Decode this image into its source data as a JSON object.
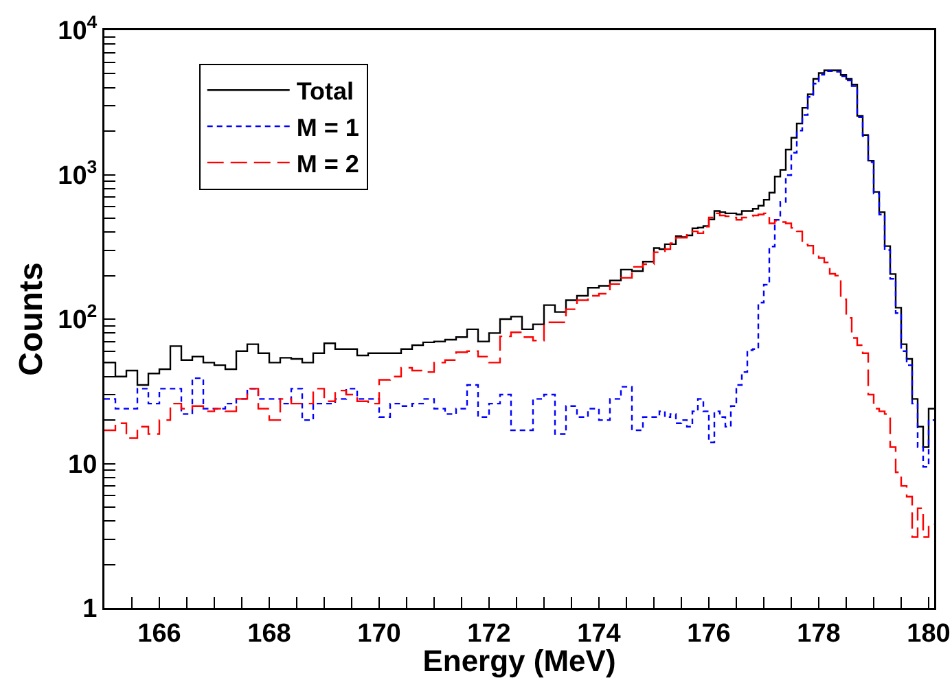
{
  "chart_data": {
    "type": "histogram",
    "xlabel": "Energy (MeV)",
    "ylabel": "Counts",
    "log": "y",
    "grid": false,
    "legend": "top left",
    "xlim": [
      165,
      180.1
    ],
    "xticks": [
      {
        "value": 165.5,
        "label": null
      },
      166,
      {
        "value": 166.5,
        "label": null
      },
      {
        "value": 167,
        "label": null
      },
      {
        "value": 167.5,
        "label": null
      },
      168,
      {
        "value": 168.5,
        "label": null
      },
      {
        "value": 169,
        "label": null
      },
      {
        "value": 169.5,
        "label": null
      },
      170,
      {
        "value": 170.5,
        "label": null
      },
      {
        "value": 171,
        "label": null
      },
      {
        "value": 171.5,
        "label": null
      },
      172,
      {
        "value": 172.5,
        "label": null
      },
      {
        "value": 173,
        "label": null
      },
      {
        "value": 173.5,
        "label": null
      },
      174,
      {
        "value": 174.5,
        "label": null
      },
      {
        "value": 175,
        "label": null
      },
      {
        "value": 175.5,
        "label": null
      },
      176,
      {
        "value": 176.5,
        "label": null
      },
      {
        "value": 177,
        "label": null
      },
      {
        "value": 177.5,
        "label": null
      },
      178,
      {
        "value": 178.5,
        "label": null
      },
      {
        "value": 179,
        "label": null
      },
      {
        "value": 179.5,
        "label": null
      },
      180
    ],
    "ylim": [
      1,
      10000
    ],
    "yticks": [
      1,
      {
        "value": 2,
        "label": null
      },
      {
        "value": 3,
        "label": null
      },
      {
        "value": 4,
        "label": null
      },
      {
        "value": 5,
        "label": null
      },
      {
        "value": 6,
        "label": null
      },
      {
        "value": 7,
        "label": null
      },
      {
        "value": 8,
        "label": null
      },
      {
        "value": 9,
        "label": null
      },
      10,
      {
        "value": 20,
        "label": null
      },
      {
        "value": 30,
        "label": null
      },
      {
        "value": 40,
        "label": null
      },
      {
        "value": 50,
        "label": null
      },
      {
        "value": 60,
        "label": null
      },
      {
        "value": 70,
        "label": null
      },
      {
        "value": 80,
        "label": null
      },
      {
        "value": 90,
        "label": null
      },
      {
        "value": 100,
        "label": "10$^{2}$"
      },
      {
        "value": 200,
        "label": null
      },
      {
        "value": 300,
        "label": null
      },
      {
        "value": 400,
        "label": null
      },
      {
        "value": 500,
        "label": null
      },
      {
        "value": 600,
        "label": null
      },
      {
        "value": 700,
        "label": null
      },
      {
        "value": 800,
        "label": null
      },
      {
        "value": 900,
        "label": null
      },
      {
        "value": 1000,
        "label": "10$^{3}$"
      },
      {
        "value": 2000,
        "label": null
      },
      {
        "value": 3000,
        "label": null
      },
      {
        "value": 4000,
        "label": null
      },
      {
        "value": 5000,
        "label": null
      },
      {
        "value": 6000,
        "label": null
      },
      {
        "value": 7000,
        "label": null
      },
      {
        "value": 8000,
        "label": null
      },
      {
        "value": 9000,
        "label": null
      },
      {
        "value": 10000,
        "label": "10$^{4}$"
      }
    ],
    "bins": [
      165,
      165.2,
      165.4,
      165.6,
      165.8,
      166,
      166.2,
      166.4,
      166.6,
      166.8,
      167,
      167.2,
      167.4,
      167.6,
      167.8,
      168,
      168.2,
      168.4,
      168.6,
      168.8,
      169,
      169.2,
      169.4,
      169.6,
      169.8,
      170,
      170.2,
      170.4,
      170.6,
      170.8,
      171,
      171.2,
      171.4,
      171.6,
      171.8,
      172,
      172.2,
      172.4,
      172.6,
      172.8,
      173,
      173.2,
      173.4,
      173.6,
      173.8,
      174,
      174.2,
      174.4,
      174.6,
      174.8,
      175,
      175.1,
      175.2,
      175.3,
      175.4,
      175.5,
      175.6,
      175.7,
      175.8,
      175.9,
      176,
      176.1,
      176.2,
      176.3,
      176.4,
      176.5,
      176.6,
      176.7,
      176.8,
      176.9,
      177,
      177.1,
      177.2,
      177.3,
      177.4,
      177.5,
      177.6,
      177.7,
      177.8,
      177.9,
      178,
      178.1,
      178.2,
      178.3,
      178.4,
      178.5,
      178.6,
      178.7,
      178.8,
      178.9,
      179,
      179.1,
      179.2,
      179.3,
      179.4,
      179.5,
      179.6,
      179.7,
      179.8,
      179.9,
      180,
      180.1
    ],
    "series": [
      {
        "name": "Total",
        "color": "#000000",
        "line_style": "solid",
        "values": [
          50,
          40,
          44,
          35,
          42,
          45,
          65,
          52,
          55,
          50,
          48,
          45,
          60,
          67,
          58,
          50,
          54,
          53,
          50,
          58,
          68,
          62,
          62,
          56,
          58,
          58,
          58,
          62,
          66,
          69,
          70,
          72,
          75,
          85,
          70,
          80,
          100,
          104,
          85,
          92,
          125,
          112,
          135,
          145,
          165,
          170,
          185,
          220,
          215,
          250,
          310,
          305,
          330,
          330,
          375,
          370,
          380,
          425,
          430,
          440,
          490,
          560,
          550,
          540,
          540,
          530,
          560,
          560,
          580,
          610,
          670,
          750,
          970,
          1080,
          1490,
          1800,
          2260,
          2900,
          3600,
          4600,
          5050,
          5270,
          5270,
          5270,
          4900,
          4600,
          4200,
          2550,
          1880,
          1250,
          760,
          550,
          320,
          205,
          120,
          67,
          53,
          28,
          18,
          13,
          24
        ]
      },
      {
        "name": "M = 1",
        "color": "#0000ff",
        "line_style": "dotted",
        "values": [
          28,
          24,
          24,
          33,
          26,
          33,
          33,
          22,
          39,
          24,
          24,
          26,
          28,
          33,
          28,
          28,
          26,
          33,
          20,
          26,
          26,
          28,
          33,
          28,
          28,
          21,
          26,
          25,
          26,
          28,
          24,
          22,
          24,
          35,
          21,
          26,
          30,
          17,
          17,
          28,
          30,
          16,
          25,
          21,
          24,
          20,
          28,
          34,
          17,
          21,
          21,
          23,
          21,
          22,
          19,
          20,
          18,
          23,
          28,
          23,
          14,
          23,
          21,
          18,
          25,
          35,
          43,
          61,
          62,
          130,
          173,
          318,
          487,
          647,
          991,
          1420,
          2020,
          2590,
          3450,
          4260,
          4920,
          5200,
          5200,
          5150,
          4800,
          4500,
          4100,
          2500,
          1850,
          1220,
          740,
          530,
          300,
          190,
          110,
          60,
          48,
          26,
          13,
          9.5,
          20
        ]
      },
      {
        "name": "M = 2",
        "color": "#ff0000",
        "line_style": "dashed",
        "values": [
          17,
          19,
          15,
          18,
          16,
          20,
          26,
          24,
          25,
          23,
          24,
          23,
          28,
          33,
          24,
          20,
          28,
          26,
          26,
          33,
          27,
          32,
          30,
          27,
          26,
          38,
          40,
          46,
          44,
          43,
          50,
          52,
          59,
          60,
          55,
          50,
          76,
          81,
          75,
          71,
          95,
          95,
          117,
          135,
          145,
          150,
          175,
          193,
          230,
          240,
          290,
          295,
          305,
          335,
          366,
          366,
          393,
          405,
          393,
          437,
          505,
          540,
          522,
          515,
          505,
          487,
          505,
          515,
          522,
          530,
          540,
          460,
          480,
          470,
          460,
          428,
          405,
          329,
          322,
          280,
          265,
          247,
          206,
          200,
          137,
          102,
          74,
          66,
          58,
          30,
          24,
          23,
          22,
          13,
          8.7,
          7,
          5.9,
          3.1,
          4.9,
          3.1,
          3.8
        ]
      }
    ]
  }
}
